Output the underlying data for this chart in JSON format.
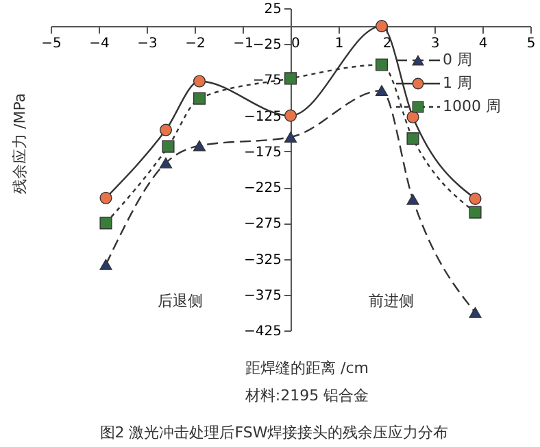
{
  "chart_data": {
    "type": "line",
    "xlabel": "距焊缝的距离 /cm",
    "ylabel": "残余应力 /MPa",
    "annotations": [
      "后退侧",
      "前进侧",
      "材料:2195 铝合金",
      "图2  激光冲击处理后FSW焊接接头的残余压应力分布"
    ],
    "xlim": [
      -5,
      5
    ],
    "xticks": [
      -5,
      -4,
      -3,
      -2,
      -1,
      0,
      1,
      2,
      3,
      4,
      5
    ],
    "ylim": [
      -425,
      25
    ],
    "yticks": [
      25,
      -25,
      -75,
      -125,
      -175,
      -225,
      -275,
      -325,
      -375,
      -425
    ],
    "grid": false,
    "legend": "top right",
    "series": [
      {
        "name": "0 周",
        "color": "#2b3a6b",
        "marker": "triangle",
        "line_style": "dashed",
        "x": [
          -3.85,
          -2.6,
          -1.9,
          0,
          1.9,
          2.55,
          3.85
        ],
        "values": [
          -333,
          -191,
          -167,
          -155,
          -90,
          -242,
          -400
        ]
      },
      {
        "name": "1 周",
        "color": "#e8734a",
        "marker": "circle",
        "line_style": "solid",
        "x": [
          -3.85,
          -2.6,
          -1.9,
          0,
          1.9,
          2.55,
          3.85
        ],
        "values": [
          -240,
          -145,
          -77,
          -125,
          0,
          -127,
          -241
        ]
      },
      {
        "name": "1000 周",
        "color": "#3a7d3a",
        "marker": "square",
        "line_style": "dotted",
        "x": [
          -3.85,
          -2.55,
          -1.9,
          0,
          1.9,
          2.55,
          3.85
        ],
        "values": [
          -275,
          -168,
          -101,
          -73,
          -54,
          -157,
          -260
        ]
      }
    ]
  }
}
